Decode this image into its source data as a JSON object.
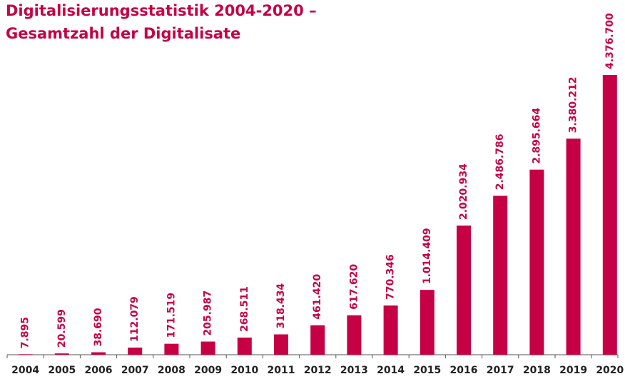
{
  "chart_data": {
    "type": "bar",
    "title": [
      "Digitalisierungsstatistik 2004-2020 –",
      "Gesamtzahl der Digitalisate"
    ],
    "categories": [
      "2004",
      "2005",
      "2006",
      "2007",
      "2008",
      "2009",
      "2010",
      "2011",
      "2012",
      "2013",
      "2014",
      "2015",
      "2016",
      "2017",
      "2018",
      "2019",
      "2020"
    ],
    "values": [
      7895,
      20599,
      38690,
      112079,
      171519,
      205987,
      268511,
      318434,
      461420,
      617620,
      770346,
      1014409,
      2020934,
      2486786,
      2895664,
      3380212,
      4376700
    ],
    "value_labels": [
      "7.895",
      "20.599",
      "38.690",
      "112.079",
      "171.519",
      "205.987",
      "268.511",
      "318.434",
      "461.420",
      "617.620",
      "770.346",
      "1.014.409",
      "2.020.934",
      "2.486.786",
      "2.895.664",
      "3.380.212",
      "4.376.700"
    ],
    "color": "#c50044",
    "ylim": [
      0,
      4500000
    ]
  }
}
